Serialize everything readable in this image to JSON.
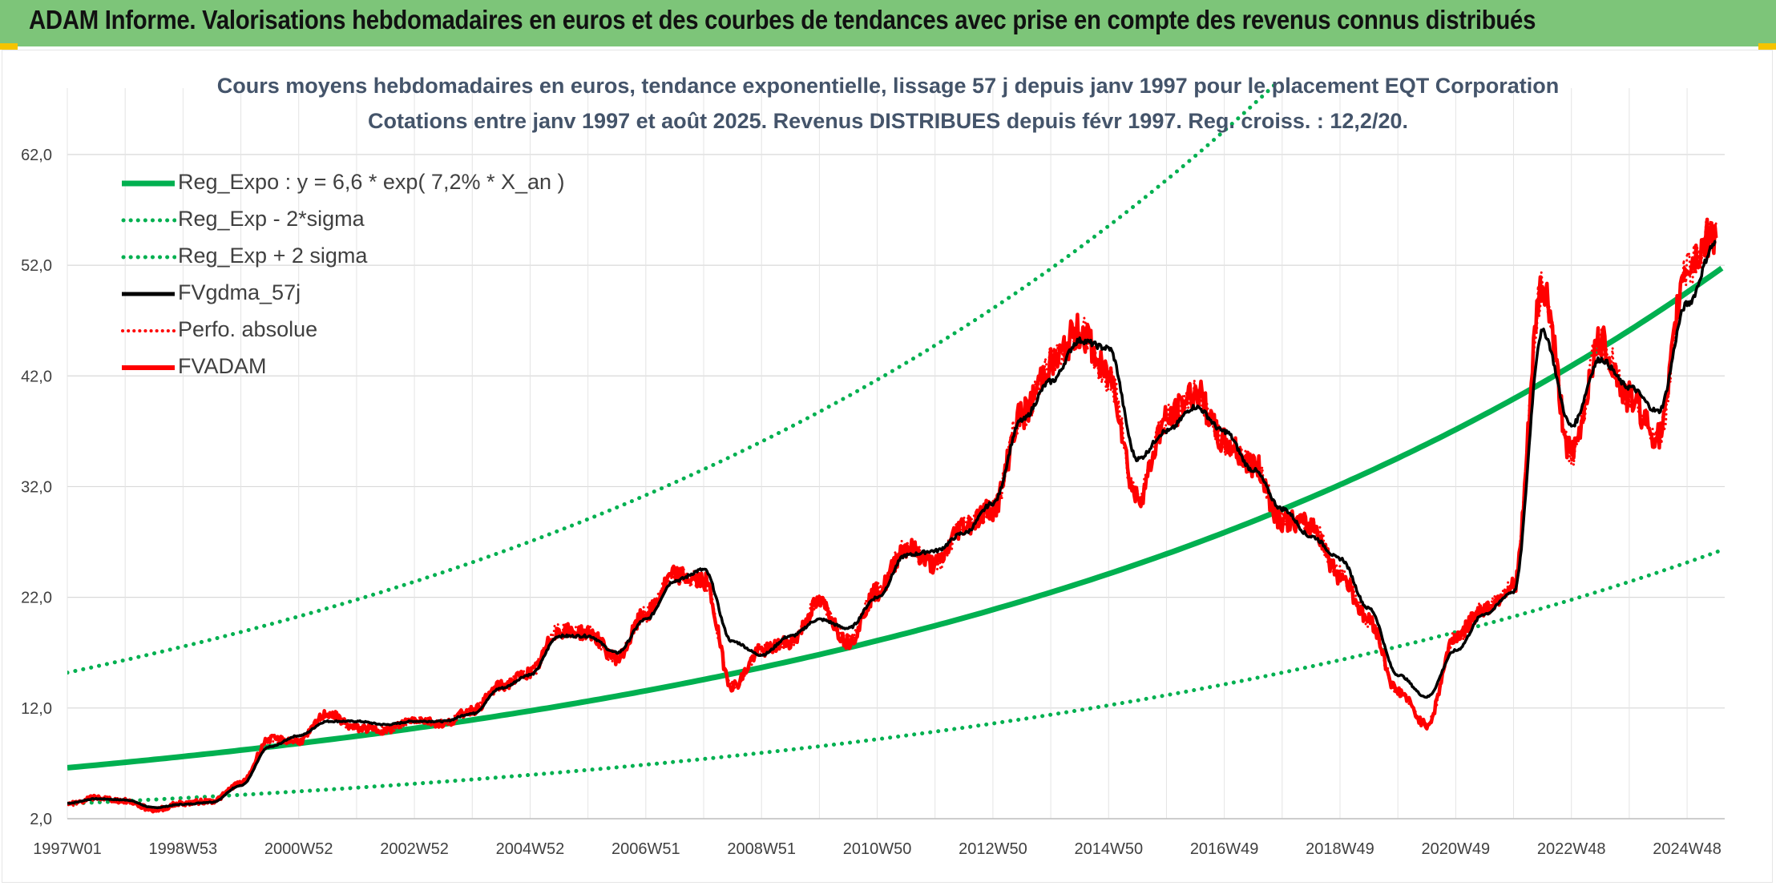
{
  "header": {
    "title": "ADAM Informe. Valorisations hebdomadaires en euros et des courbes de tendances avec prise en compte des revenus connus distribués"
  },
  "chart_data": {
    "type": "line",
    "title": "Cours moyens hebdomadaires en euros, tendance exponentielle, lissage 57 j depuis janv 1997 pour le placement EQT Corporation",
    "subtitle": "Cotations entre janv 1997 et août 2025. Revenus DISTRIBUES depuis févr 1997. Reg. croiss. : 12,2/20.",
    "xlabel": "",
    "ylabel": "",
    "x_start": 1997.0,
    "x_end": 2025.65,
    "ylim": [
      2.0,
      68.0
    ],
    "y_ticks": [
      "2,0",
      "12,0",
      "22,0",
      "32,0",
      "42,0",
      "52,0",
      "62,0"
    ],
    "y_tick_values": [
      2,
      12,
      22,
      32,
      42,
      52,
      62
    ],
    "x_ticks": [
      "1997W01",
      "1998W53",
      "2000W52",
      "2002W52",
      "2004W52",
      "2006W51",
      "2008W51",
      "2010W50",
      "2012W50",
      "2014W50",
      "2016W49",
      "2018W49",
      "2020W49",
      "2022W48",
      "2024W48"
    ],
    "x_tick_values": [
      1997.0,
      1999.0,
      2001.0,
      2003.0,
      2005.0,
      2007.0,
      2009.0,
      2011.0,
      2013.0,
      2015.0,
      2017.0,
      2019.0,
      2021.0,
      2023.0,
      2025.0
    ],
    "grid": true,
    "legend_position": "top-left",
    "series": [
      {
        "name": "Reg_Expo : y = 6,6 * exp( 7,2% *  X_an )",
        "kind": "expo",
        "a": 6.6,
        "r": 0.072,
        "color": "#00b050",
        "style": "solid"
      },
      {
        "name": "Reg_Exp - 2*sigma",
        "kind": "expo",
        "a": 3.35,
        "r": 0.072,
        "color": "#00b050",
        "style": "dotted"
      },
      {
        "name": "Reg_Exp + 2 sigma",
        "kind": "expo",
        "a": 15.2,
        "r": 0.072,
        "color": "#00b050",
        "style": "dotted"
      },
      {
        "name": "FVgdma_57j",
        "kind": "points",
        "color": "#000000",
        "style": "solid",
        "x": [
          1997.0,
          1997.5,
          1998.0,
          1998.5,
          1999.0,
          1999.5,
          2000.0,
          2000.5,
          2001.0,
          2001.5,
          2002.0,
          2002.5,
          2003.0,
          2003.5,
          2004.0,
          2004.5,
          2005.0,
          2005.5,
          2006.0,
          2006.5,
          2007.0,
          2007.5,
          2008.0,
          2008.5,
          2009.0,
          2009.5,
          2010.0,
          2010.5,
          2011.0,
          2011.5,
          2012.0,
          2012.5,
          2013.0,
          2013.5,
          2014.0,
          2014.5,
          2015.0,
          2015.5,
          2016.0,
          2016.5,
          2017.0,
          2017.5,
          2018.0,
          2018.5,
          2019.0,
          2019.5,
          2020.0,
          2020.5,
          2021.0,
          2021.5,
          2022.0,
          2022.5,
          2023.0,
          2023.5,
          2024.0,
          2024.5,
          2025.0,
          2025.5
        ],
        "y": [
          3.4,
          3.8,
          3.7,
          3.0,
          3.3,
          3.5,
          5.0,
          8.5,
          9.5,
          10.8,
          10.8,
          10.5,
          10.8,
          10.8,
          11.5,
          13.8,
          15.0,
          18.5,
          18.5,
          17.0,
          20.0,
          23.5,
          24.5,
          18.0,
          16.8,
          18.5,
          20.0,
          19.2,
          22.0,
          25.8,
          26.2,
          27.8,
          30.5,
          38.0,
          41.5,
          45.2,
          44.5,
          34.5,
          37.0,
          39.2,
          37.0,
          33.5,
          30.0,
          27.5,
          25.5,
          21.0,
          15.0,
          13.0,
          17.2,
          20.5,
          22.5,
          46.0,
          37.5,
          43.5,
          41.0,
          38.8,
          48.5,
          54.0
        ]
      },
      {
        "name": "Perfo. absolue",
        "kind": "points",
        "color": "#ff0000",
        "style": "dotted",
        "x": [
          1997.0,
          1997.5,
          1998.0,
          1998.5,
          1999.0,
          1999.5,
          2000.0,
          2000.5,
          2001.0,
          2001.5,
          2002.0,
          2002.5,
          2003.0,
          2003.5,
          2004.0,
          2004.5,
          2005.0,
          2005.5,
          2006.0,
          2006.5,
          2007.0,
          2007.5,
          2008.0,
          2008.5,
          2009.0,
          2009.5,
          2010.0,
          2010.5,
          2011.0,
          2011.5,
          2012.0,
          2012.5,
          2013.0,
          2013.5,
          2014.0,
          2014.5,
          2015.0,
          2015.5,
          2016.0,
          2016.5,
          2017.0,
          2017.5,
          2018.0,
          2018.5,
          2019.0,
          2019.5,
          2020.0,
          2020.5,
          2021.0,
          2021.5,
          2022.0,
          2022.5,
          2023.0,
          2023.5,
          2024.0,
          2024.5,
          2025.0,
          2025.5
        ],
        "y": [
          3.3,
          3.9,
          3.6,
          2.8,
          3.4,
          3.6,
          5.2,
          9.2,
          9.0,
          11.5,
          10.2,
          10.0,
          11.0,
          10.6,
          11.8,
          14.0,
          15.2,
          19.0,
          18.8,
          16.5,
          20.5,
          24.0,
          23.5,
          14.0,
          17.2,
          18.0,
          21.5,
          18.0,
          22.5,
          26.5,
          25.0,
          28.5,
          30.0,
          38.5,
          43.0,
          46.0,
          42.0,
          31.0,
          38.0,
          40.5,
          36.0,
          34.0,
          29.0,
          28.5,
          24.0,
          20.0,
          13.5,
          10.5,
          18.5,
          21.0,
          23.0,
          50.0,
          35.0,
          45.0,
          40.0,
          36.5,
          52.0,
          55.0
        ]
      },
      {
        "name": "FVADAM",
        "kind": "points",
        "color": "#ff0000",
        "style": "solid",
        "x": [
          1997.0,
          1997.5,
          1998.0,
          1998.5,
          1999.0,
          1999.5,
          2000.0,
          2000.5,
          2001.0,
          2001.5,
          2002.0,
          2002.5,
          2003.0,
          2003.5,
          2004.0,
          2004.5,
          2005.0,
          2005.5,
          2006.0,
          2006.5,
          2007.0,
          2007.5,
          2008.0,
          2008.5,
          2009.0,
          2009.5,
          2010.0,
          2010.5,
          2011.0,
          2011.5,
          2012.0,
          2012.5,
          2013.0,
          2013.5,
          2014.0,
          2014.5,
          2015.0,
          2015.5,
          2016.0,
          2016.5,
          2017.0,
          2017.5,
          2018.0,
          2018.5,
          2019.0,
          2019.5,
          2020.0,
          2020.5,
          2021.0,
          2021.5,
          2022.0,
          2022.5,
          2023.0,
          2023.5,
          2024.0,
          2024.5,
          2025.0,
          2025.5
        ],
        "y": [
          3.3,
          3.9,
          3.6,
          2.8,
          3.4,
          3.6,
          5.2,
          9.2,
          9.0,
          11.5,
          10.2,
          10.0,
          11.0,
          10.6,
          11.8,
          14.0,
          15.2,
          19.0,
          18.8,
          16.5,
          20.5,
          24.0,
          23.5,
          14.0,
          17.2,
          18.0,
          21.5,
          18.0,
          22.5,
          26.5,
          25.0,
          28.5,
          30.0,
          38.5,
          43.0,
          46.0,
          42.0,
          31.0,
          38.0,
          40.5,
          36.0,
          34.0,
          29.0,
          28.5,
          24.0,
          20.0,
          13.5,
          10.5,
          18.5,
          21.0,
          23.0,
          50.0,
          35.0,
          45.0,
          40.0,
          36.5,
          52.0,
          55.0
        ]
      }
    ]
  }
}
